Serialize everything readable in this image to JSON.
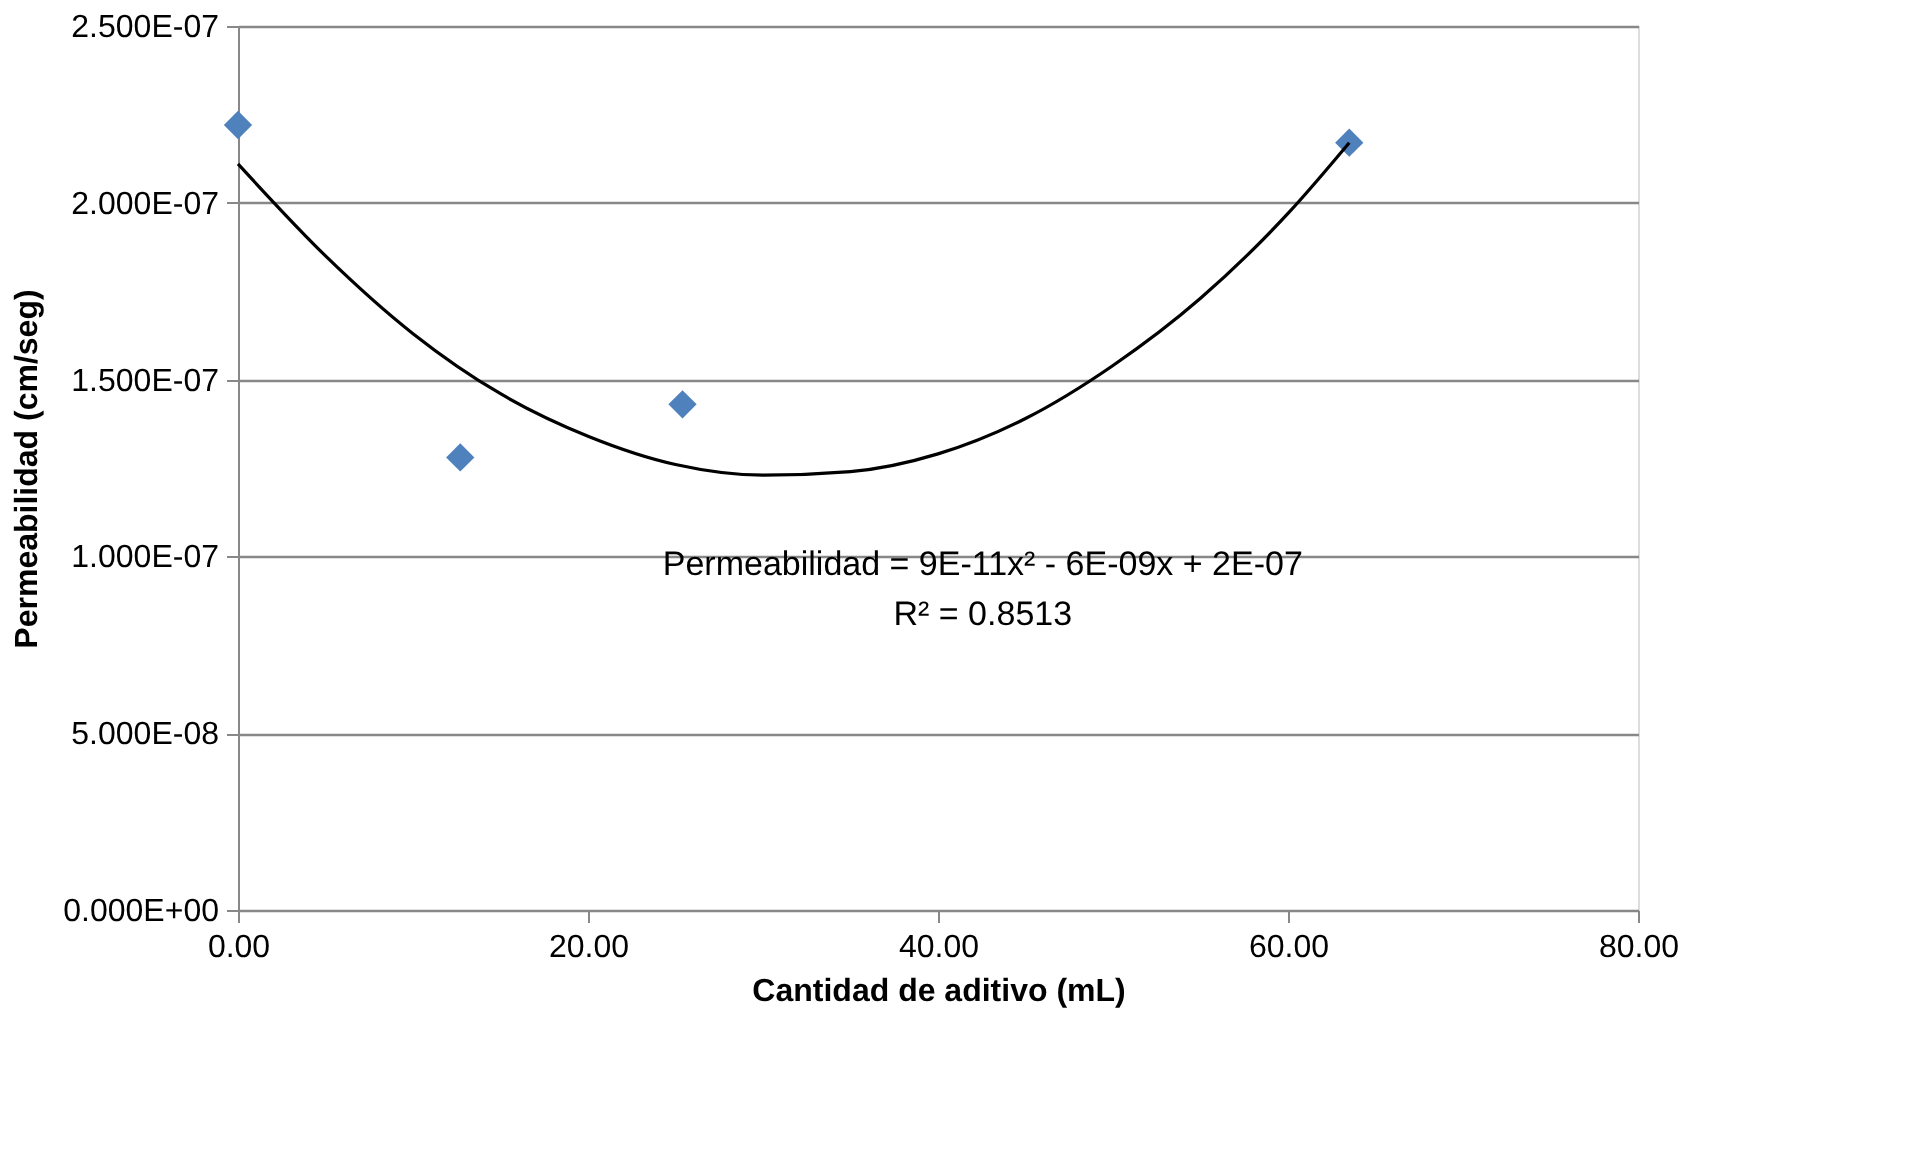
{
  "chart_data": {
    "type": "scatter",
    "xlabel": "Cantidad de aditivo (mL)",
    "ylabel": "Permeabilidad (cm/seg)",
    "series": [
      {
        "color": "#4f81bd",
        "marker": "diamond",
        "x": [
          0,
          12.7,
          25.4,
          63.5
        ],
        "values": [
          2.22e-07,
          1.28e-07,
          1.43e-07,
          2.17e-07
        ]
      },
      {
        "type": "line",
        "color": "#000000",
        "marker": "none",
        "line_style": "solid",
        "x": [
          0,
          5,
          10,
          15,
          20,
          25,
          30,
          35,
          40,
          45,
          50,
          55,
          60,
          63.5
        ],
        "values": [
          2.11e-07,
          1.85e-07,
          1.63e-07,
          1.46e-07,
          1.34e-07,
          1.26e-07,
          1.23e-07,
          1.24e-07,
          1.29e-07,
          1.39e-07,
          1.54e-07,
          1.73e-07,
          1.97e-07,
          2.17e-07
        ]
      }
    ],
    "xlim": [
      0,
      80
    ],
    "ylim": [
      0,
      2.5e-07
    ],
    "xticks": [
      {
        "value": 0,
        "label": "0.00"
      },
      {
        "value": 20,
        "label": "20.00"
      },
      {
        "value": 40,
        "label": "40.00"
      },
      {
        "value": 60,
        "label": "60.00"
      },
      {
        "value": 80,
        "label": "80.00"
      }
    ],
    "yticks": [
      {
        "value": 0,
        "label": "0.000E+00"
      },
      {
        "value": 5e-08,
        "label": "5.000E-08"
      },
      {
        "value": 1e-07,
        "label": "1.000E-07"
      },
      {
        "value": 1.5e-07,
        "label": "1.500E-07"
      },
      {
        "value": 2e-07,
        "label": "2.000E-07"
      },
      {
        "value": 2.5e-07,
        "label": "2.500E-07"
      }
    ],
    "annotations": [
      "Permeabilidad = 9E-11x² - 6E-09x + 2E-07",
      "R² = 0.8513"
    ],
    "grid": "y"
  }
}
